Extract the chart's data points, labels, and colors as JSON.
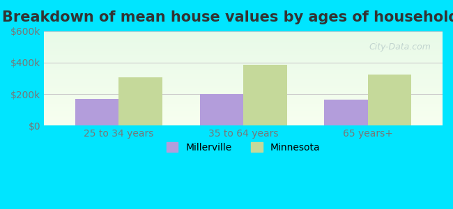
{
  "title": "Breakdown of mean house values by ages of householders",
  "categories": [
    "25 to 34 years",
    "35 to 64 years",
    "65 years+"
  ],
  "millerville_values": [
    170000,
    200000,
    165000
  ],
  "minnesota_values": [
    305000,
    385000,
    325000
  ],
  "millerville_color": "#b39ddb",
  "minnesota_color": "#c5d99a",
  "ylim": [
    0,
    600000
  ],
  "yticks": [
    0,
    200000,
    400000,
    600000
  ],
  "ytick_labels": [
    "$0",
    "$200k",
    "$400k",
    "$600k"
  ],
  "bar_width": 0.35,
  "background_outer": "#00e5ff",
  "background_inner_top": "#e8f5e9",
  "background_inner_bottom": "#f9ffe9",
  "legend_millerville": "Millerville",
  "legend_minnesota": "Minnesota",
  "title_fontsize": 15,
  "tick_fontsize": 10,
  "legend_fontsize": 10
}
